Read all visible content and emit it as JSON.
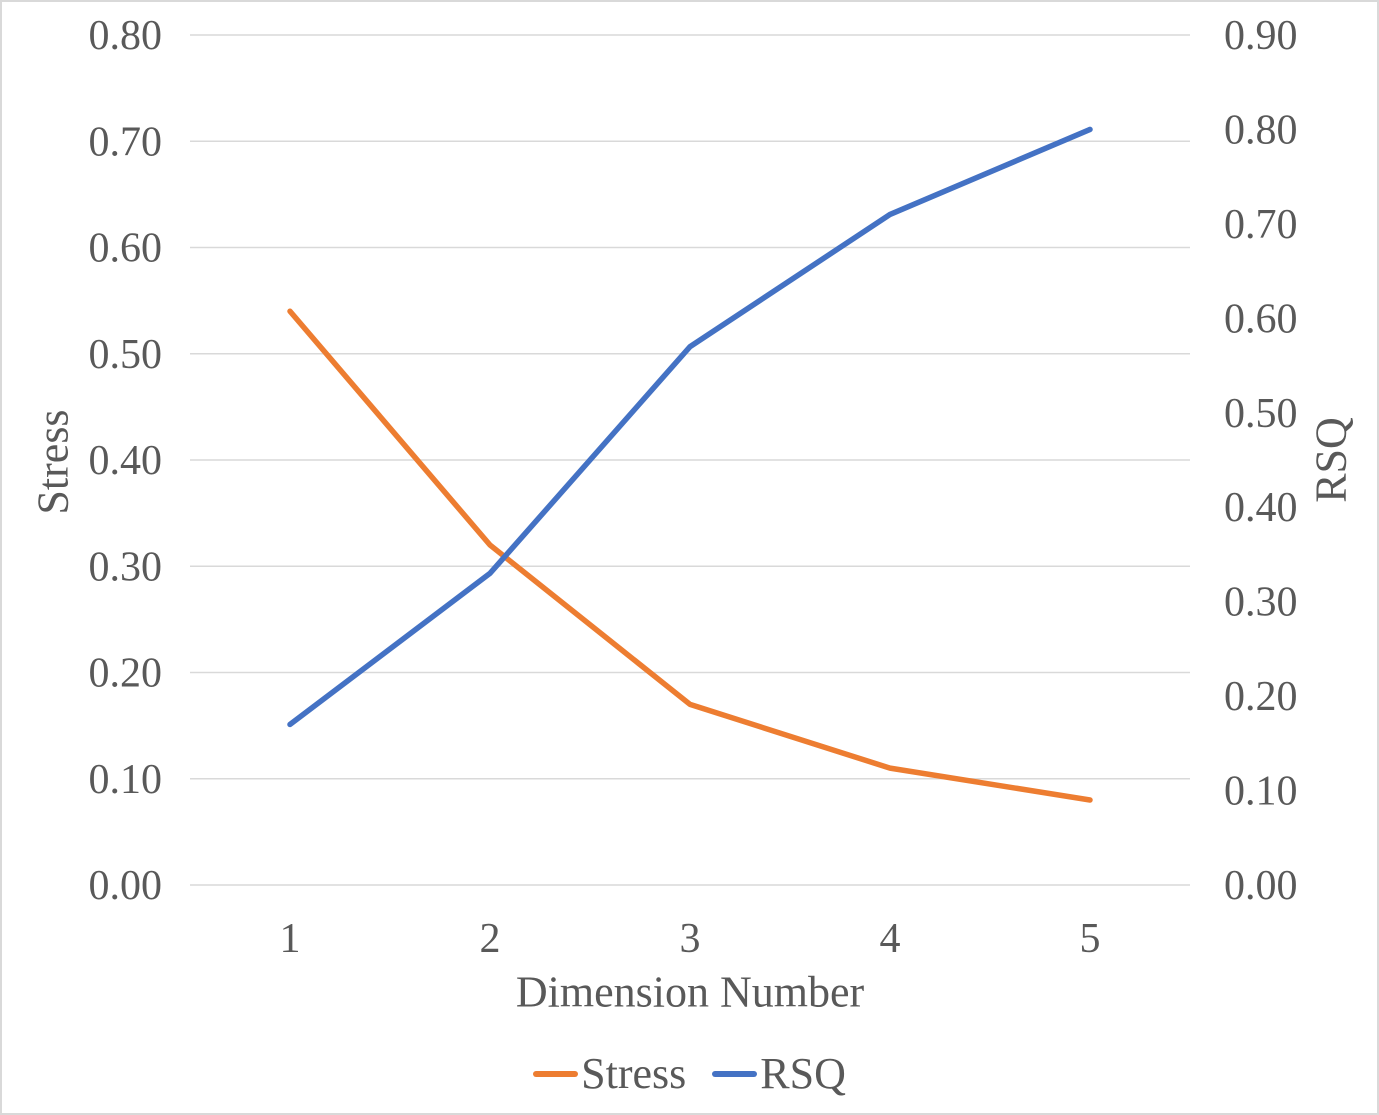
{
  "chart_data": {
    "type": "line",
    "x": [
      "1",
      "2",
      "3",
      "4",
      "5"
    ],
    "xlabel": "Dimension Number",
    "series": [
      {
        "name": "Stress",
        "axis": "left",
        "color": "#ED7D31",
        "values": [
          0.54,
          0.32,
          0.17,
          0.11,
          0.08
        ]
      },
      {
        "name": "RSQ",
        "axis": "right",
        "color": "#4472C4",
        "values": [
          0.17,
          0.33,
          0.57,
          0.71,
          0.8
        ]
      }
    ],
    "axes": {
      "left": {
        "label": "Stress",
        "min": 0.0,
        "max": 0.8,
        "tick_step": 0.1,
        "tick_labels": [
          "0.00",
          "0.10",
          "0.20",
          "0.30",
          "0.40",
          "0.50",
          "0.60",
          "0.70",
          "0.80"
        ]
      },
      "right": {
        "label": "RSQ",
        "min": 0.0,
        "max": 0.9,
        "tick_step": 0.1,
        "tick_labels": [
          "0.00",
          "0.10",
          "0.20",
          "0.30",
          "0.40",
          "0.50",
          "0.60",
          "0.70",
          "0.80",
          "0.90"
        ]
      }
    },
    "grid": "horizontal-major-primary",
    "style": {
      "gridline_color": "#D9D9D9",
      "text_color": "#595959",
      "background": "#FFFFFF",
      "border_color": "#D9D9D9",
      "line_width": 5.5
    },
    "legend": {
      "position": "bottom",
      "items": [
        "Stress",
        "RSQ"
      ]
    }
  }
}
